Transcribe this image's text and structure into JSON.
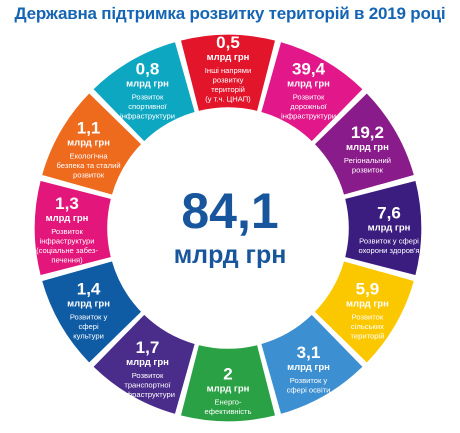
{
  "chart_data": {
    "type": "pie",
    "title": "Державна підтримка розвитку територій в 2019 році",
    "center": {
      "total": "84,1",
      "unit": "млрд грн"
    },
    "unit": "млрд грн",
    "segments": [
      {
        "value": "0,5",
        "unit": "млрд грн",
        "label": [
          "Інші напрями",
          "розвитку",
          "територій",
          "(у т.ч. ЦНАП)"
        ],
        "color": "#e3152a"
      },
      {
        "value": "39,4",
        "unit": "млрд грн",
        "label": [
          "Розвиток",
          "дорожньої",
          "інфраструктури"
        ],
        "color": "#e2188a"
      },
      {
        "value": "19,2",
        "unit": "млрд грн",
        "label": [
          "Регіональний",
          "розвиток"
        ],
        "color": "#8a1b8a"
      },
      {
        "value": "7,6",
        "unit": "млрд грн",
        "label": [
          "Розвиток у сфері",
          "охорони здоров'я"
        ],
        "color": "#3b1d80"
      },
      {
        "value": "5,9",
        "unit": "млрд грн",
        "label": [
          "Розвиток",
          "сільських",
          "територій"
        ],
        "color": "#fbc800"
      },
      {
        "value": "3,1",
        "unit": "млрд грн",
        "label": [
          "Розвиток у",
          "сфері освіти"
        ],
        "color": "#3c8fd0"
      },
      {
        "value": "2",
        "unit": "млрд грн",
        "label": [
          "Енерго-",
          "ефективність"
        ],
        "color": "#2aa145"
      },
      {
        "value": "1,7",
        "unit": "млрд грн",
        "label": [
          "Розвиток",
          "транспортної",
          "інфраструктури"
        ],
        "color": "#4a2c8a"
      },
      {
        "value": "1,4",
        "unit": "млрд грн",
        "label": [
          "Розвиток у",
          "сфері",
          "культури"
        ],
        "color": "#0f5ca4"
      },
      {
        "value": "1,3",
        "unit": "млрд грн",
        "label": [
          "Розвиток",
          "інфраструктури",
          "(соціальне забез-",
          "печення)"
        ],
        "color": "#e3177b"
      },
      {
        "value": "1,1",
        "unit": "млрд грн",
        "label": [
          "Екологічна",
          "безпека та  сталий",
          "розвиток"
        ],
        "color": "#ee6a1d"
      },
      {
        "value": "0,8",
        "unit": "млрд грн",
        "label": [
          "Розвиток",
          "спортивної",
          "інфраструктури"
        ],
        "color": "#0ea7c2"
      }
    ]
  }
}
